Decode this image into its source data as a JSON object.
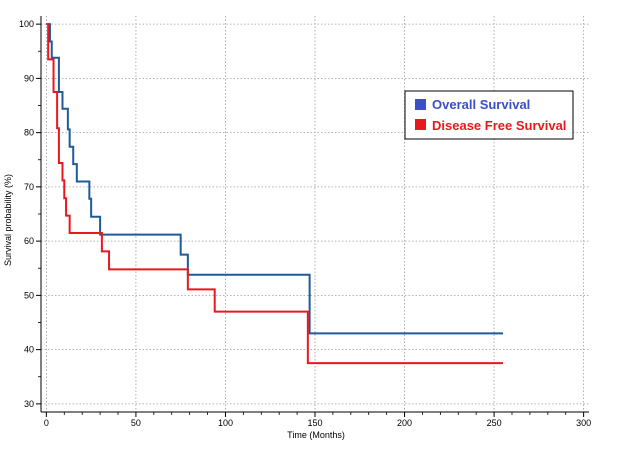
{
  "chart_data": {
    "type": "line",
    "step": true,
    "title": "",
    "xlabel": "Time (Months)",
    "ylabel": "Survival probability (%)",
    "xlim": [
      -3,
      303
    ],
    "ylim": [
      28.5,
      101.5
    ],
    "xticks": [
      0,
      50,
      100,
      150,
      200,
      250,
      300
    ],
    "yticks": [
      30,
      40,
      50,
      60,
      70,
      80,
      90,
      100
    ],
    "grid": true,
    "legend_position": "top-right",
    "series": [
      {
        "name": "Overall Survival",
        "color": "#1f5a9a",
        "legend_color": "#3b4fc8",
        "legend_text_color": "#3b4fc8",
        "points": [
          [
            0,
            100
          ],
          [
            2,
            96.8
          ],
          [
            3,
            93.8
          ],
          [
            7,
            87.5
          ],
          [
            9,
            84.4
          ],
          [
            12,
            80.6
          ],
          [
            13,
            77.4
          ],
          [
            15,
            74.2
          ],
          [
            17,
            71
          ],
          [
            24,
            67.8
          ],
          [
            25,
            64.5
          ],
          [
            30,
            61.2
          ],
          [
            75,
            57.5
          ],
          [
            79,
            53.8
          ],
          [
            147,
            43
          ],
          [
            255,
            43
          ]
        ]
      },
      {
        "name": "Disease Free Survival",
        "color": "#e8191e",
        "legend_color": "#e8191e",
        "legend_text_color": "#e8191e",
        "points": [
          [
            0,
            100
          ],
          [
            1,
            93.5
          ],
          [
            4,
            87.5
          ],
          [
            6,
            80.8
          ],
          [
            7,
            74.4
          ],
          [
            9,
            71.2
          ],
          [
            10,
            67.9
          ],
          [
            11,
            64.7
          ],
          [
            13,
            61.5
          ],
          [
            31,
            58.1
          ],
          [
            35,
            54.8
          ],
          [
            79,
            51.1
          ],
          [
            94,
            47
          ],
          [
            146,
            37.5
          ],
          [
            255,
            37.5
          ]
        ]
      }
    ]
  }
}
